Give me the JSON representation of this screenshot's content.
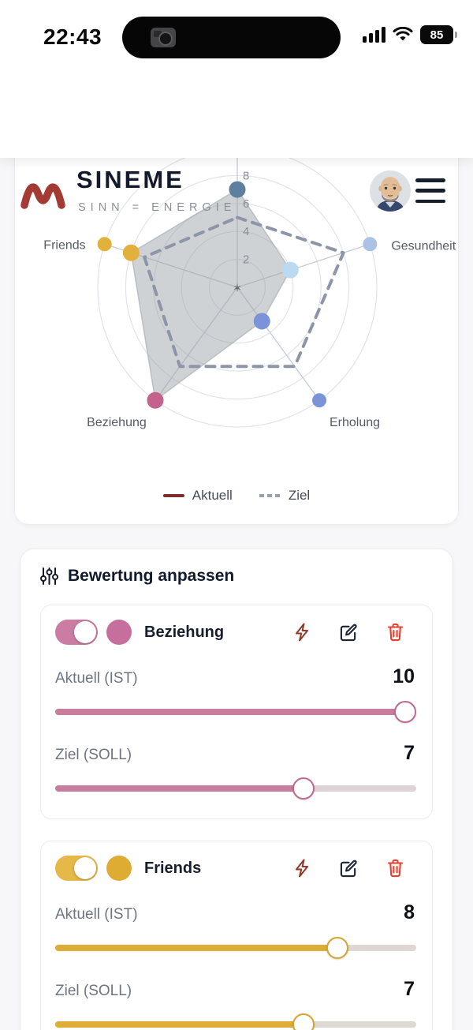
{
  "status_bar": {
    "time": "22:43",
    "battery_percent": "85"
  },
  "header": {
    "app_name": "SINEME",
    "tagline": "SINN = ENERGIE"
  },
  "chart_card": {
    "legend": [
      {
        "label": "Aktuell",
        "style": "solid",
        "color": "#7b2f2a"
      },
      {
        "label": "Ziel",
        "style": "dashed",
        "color": "#98a0ae"
      }
    ],
    "chart_data": {
      "type": "radar",
      "categories": [
        "",
        "Gesundheit",
        "Erholung",
        "Beziehung",
        "Friends"
      ],
      "axis_angles_deg": [
        90,
        18,
        -54,
        234,
        162
      ],
      "rmax": 10,
      "ticks": [
        2,
        4,
        6,
        8
      ],
      "series": [
        {
          "name": "Aktuell",
          "values": [
            7,
            4,
            3,
            10,
            8
          ],
          "style": "solid-filled"
        },
        {
          "name": "Ziel",
          "values": [
            5,
            8,
            7,
            7,
            7
          ],
          "style": "dashed"
        }
      ],
      "category_colors": [
        "#5e7f9d",
        "#a9c2e6",
        "#7b94d9",
        "#c4618c",
        "#e2b13c"
      ],
      "point_colors": [
        "#5e7f9d",
        "#bcd9f2",
        "#7b94d9",
        "#c4618c",
        "#e2b13c"
      ],
      "grid_color": "#e0e3e9",
      "axis_color": "#c6cbd4",
      "fill_color": "#9aa0a6",
      "dash_color": "#8d96a8"
    }
  },
  "adjust_card": {
    "title": "Bewertung anpassen",
    "title_icon": "sliders-icon",
    "item_icons": [
      "lightning-icon",
      "edit-icon",
      "trash-icon"
    ],
    "icon_colors": {
      "lightning": "#8f3a2a",
      "edit": "#1b2435",
      "trash": "#e5402f"
    },
    "slider_max": 10,
    "items": [
      {
        "label": "Beziehung",
        "enabled": true,
        "toggle_color": "#cb7ca2",
        "dot_color": "#c66f9c",
        "slider_color": "#c87d9d",
        "thumb_border": "#bf6890",
        "track_rest": "#ddd3d7",
        "ist_label": "Aktuell (IST)",
        "ist_value": 10,
        "soll_label": "Ziel (SOLL)",
        "soll_value": 7
      },
      {
        "label": "Friends",
        "enabled": true,
        "toggle_color": "#e5b848",
        "dot_color": "#dfac33",
        "slider_color": "#ddad35",
        "thumb_border": "#d5a42e",
        "track_rest": "#ded8d2",
        "ist_label": "Aktuell (IST)",
        "ist_value": 8,
        "soll_label": "Ziel (SOLL)",
        "soll_value": 7
      }
    ]
  }
}
